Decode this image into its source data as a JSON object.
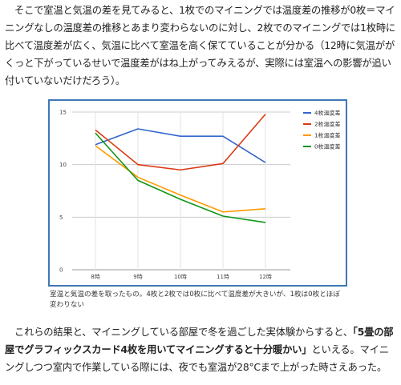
{
  "paragraph1": {
    "text": "そこで室温と気温の差を見てみると、1枚でのマイニングでは温度差の推移が0枚＝マイニングなしの温度差の推移とあまり変わらないのに対し、2枚でのマイニングでは1枚時に比べて温度差が広く、気温に比べて室温を高く保てていることが分かる（12時に気温ががくっと下がっているせいで温度差がはね上がってみえるが、実際には室温への影響が追い付いていないだけだろう）。"
  },
  "caption": {
    "text": "室温と気温の差を取ったもの。4枚と2枚では0枚に比べて温度差が大きいが、1枚は0枚とほぼ変わりない"
  },
  "paragraph2": {
    "before": "これらの結果と、マイニングしている部屋で冬を過ごした実体験からすると、",
    "bold": "「5畳の部屋でグラフィックスカード4枚を用いてマイニングすると十分暖かい」",
    "after": "といえる。マイニングしつつ室内で作業している際には、夜でも室温が28°Cまで上がった時さえあった。"
  },
  "chart_data": {
    "type": "line",
    "title": "",
    "xlabel": "",
    "ylabel": "",
    "categories": [
      "8時",
      "9時",
      "10時",
      "11時",
      "12時"
    ],
    "y_ticks": [
      "0",
      "5",
      "10",
      "15"
    ],
    "ylim": [
      0,
      15
    ],
    "grid": true,
    "legend_position": "right",
    "series": [
      {
        "name": "4枚温度差",
        "color": "#3366cc",
        "values": [
          11.9,
          13.4,
          12.7,
          12.7,
          10.2
        ]
      },
      {
        "name": "2枚温度差",
        "color": "#dc3912",
        "values": [
          13.3,
          10.0,
          9.5,
          10.1,
          14.8
        ]
      },
      {
        "name": "1枚温度差",
        "color": "#ff9900",
        "values": [
          11.8,
          8.8,
          7.1,
          5.5,
          5.8
        ]
      },
      {
        "name": "0枚温度差",
        "color": "#109618",
        "values": [
          13.0,
          8.5,
          6.7,
          5.1,
          4.5
        ]
      }
    ]
  }
}
